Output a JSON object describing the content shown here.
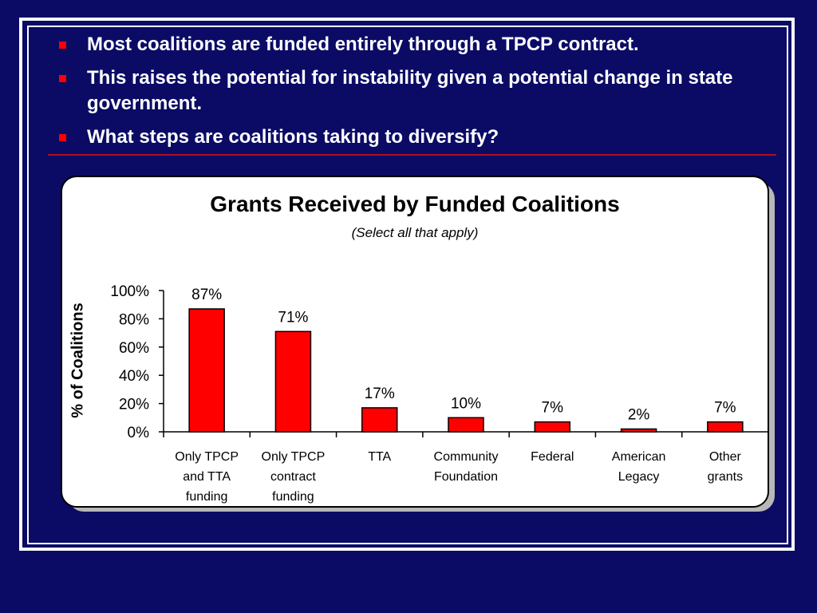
{
  "bullets": [
    "Most coalitions are funded entirely through a TPCP contract.",
    "This raises the potential for instability given a potential change in state government.",
    "What steps are coalitions taking to diversify?"
  ],
  "colors": {
    "background": "#0b0b66",
    "bullet_marker": "#ff0000",
    "bar_fill": "#ff0000",
    "bar_stroke": "#000000"
  },
  "chart_data": {
    "type": "bar",
    "title": "Grants Received by Funded Coalitions",
    "subtitle": "(Select all that apply)",
    "ylabel": "% of Coalitions",
    "xlabel": "",
    "ylim": [
      0,
      100
    ],
    "y_ticks": [
      "0%",
      "20%",
      "40%",
      "60%",
      "80%",
      "100%"
    ],
    "grid": false,
    "legend": "none",
    "categories": [
      [
        "Only TPCP",
        "and TTA",
        "funding"
      ],
      [
        "Only TPCP",
        "contract",
        "funding"
      ],
      [
        "TTA"
      ],
      [
        "Community",
        "Foundation"
      ],
      [
        "Federal"
      ],
      [
        "American",
        "Legacy"
      ],
      [
        "Other",
        "grants"
      ]
    ],
    "values": [
      87,
      71,
      17,
      10,
      7,
      2,
      7
    ],
    "data_labels": [
      "87%",
      "71%",
      "17%",
      "10%",
      "7%",
      "2%",
      "7%"
    ]
  }
}
